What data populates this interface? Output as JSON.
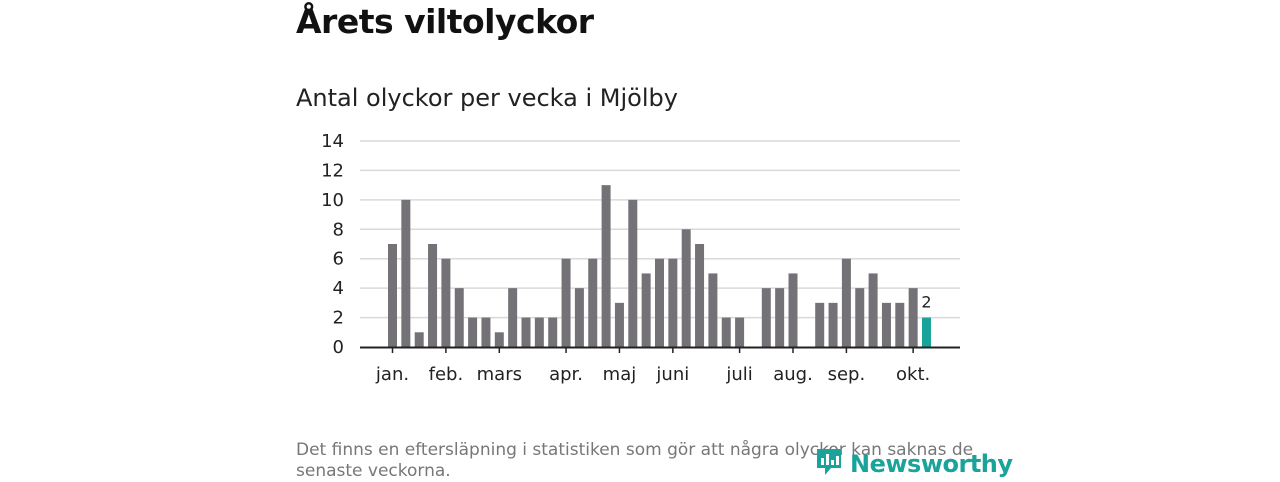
{
  "header": {
    "title": "Årets viltolyckor",
    "subtitle": "Antal olyckor per vecka i Mjölby"
  },
  "colors": {
    "bar": "#747276",
    "highlight": "#1aa39a",
    "grid": "#d9d9d9",
    "axis": "#222222"
  },
  "chart_data": {
    "type": "bar",
    "title": "Antal olyckor per vecka i Mjölby",
    "xlabel": "",
    "ylabel": "",
    "ylim": [
      0,
      14
    ],
    "yticks": [
      0,
      2,
      4,
      6,
      8,
      10,
      12,
      14
    ],
    "values": [
      7,
      10,
      1,
      7,
      6,
      4,
      2,
      2,
      1,
      4,
      2,
      2,
      2,
      6,
      4,
      6,
      11,
      3,
      10,
      5,
      6,
      6,
      8,
      7,
      5,
      2,
      2,
      0,
      4,
      4,
      5,
      0,
      3,
      3,
      6,
      4,
      5,
      3,
      3,
      4,
      2
    ],
    "month_labels": [
      {
        "label": "jan.",
        "index": 0
      },
      {
        "label": "feb.",
        "index": 4
      },
      {
        "label": "mars",
        "index": 8
      },
      {
        "label": "apr.",
        "index": 13
      },
      {
        "label": "maj",
        "index": 17
      },
      {
        "label": "juni",
        "index": 21
      },
      {
        "label": "juli",
        "index": 26
      },
      {
        "label": "aug.",
        "index": 30
      },
      {
        "label": "sep.",
        "index": 34
      },
      {
        "label": "okt.",
        "index": 39
      }
    ],
    "highlight_index": 40,
    "highlight_label": "2"
  },
  "footer": {
    "note": "Det finns en eftersläpning i statistiken som gör att några olyckor kan saknas de senaste veckorna.",
    "logo_text": "Newsworthy"
  }
}
